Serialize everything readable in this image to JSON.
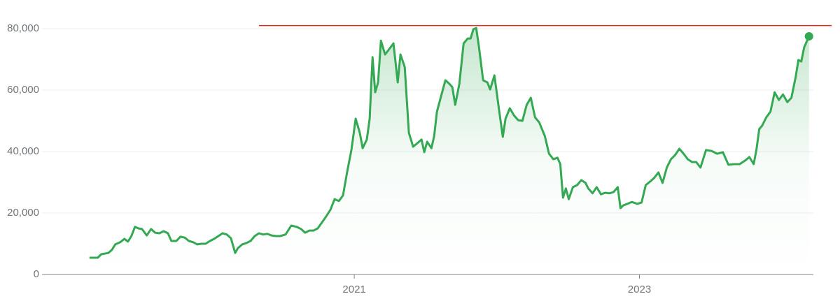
{
  "chart_data": {
    "type": "line",
    "color": "#34a853",
    "grid": true,
    "x": [
      2019.143,
      2019.201,
      2019.226,
      2019.275,
      2019.3,
      2019.324,
      2019.359,
      2019.388,
      2019.413,
      2019.437,
      2019.462,
      2019.486,
      2019.511,
      2019.545,
      2019.575,
      2019.604,
      2019.634,
      2019.663,
      2019.693,
      2019.717,
      2019.752,
      2019.781,
      2019.811,
      2019.84,
      2019.87,
      2019.899,
      2019.929,
      2019.958,
      2019.988,
      2020.017,
      2020.047,
      2020.076,
      2020.106,
      2020.135,
      2020.165,
      2020.184,
      2020.214,
      2020.243,
      2020.273,
      2020.302,
      2020.332,
      2020.361,
      2020.391,
      2020.42,
      2020.45,
      2020.479,
      2020.518,
      2020.558,
      2020.597,
      2020.627,
      2020.656,
      2020.686,
      2020.715,
      2020.744,
      2020.774,
      2020.803,
      2020.833,
      2020.862,
      2020.892,
      2020.921,
      2020.951,
      2020.98,
      2021.01,
      2021.039,
      2021.059,
      2021.088,
      2021.108,
      2021.128,
      2021.147,
      2021.167,
      2021.187,
      2021.216,
      2021.246,
      2021.275,
      2021.305,
      2021.324,
      2021.354,
      2021.383,
      2021.413,
      2021.442,
      2021.472,
      2021.491,
      2021.511,
      2021.541,
      2021.56,
      2021.58,
      2021.609,
      2021.639,
      2021.668,
      2021.688,
      2021.708,
      2021.737,
      2021.767,
      2021.796,
      2021.816,
      2021.835,
      2021.855,
      2021.875,
      2021.904,
      2021.934,
      2021.953,
      2021.983,
      2022.012,
      2022.042,
      2022.061,
      2022.091,
      2022.12,
      2022.15,
      2022.179,
      2022.209,
      2022.238,
      2022.268,
      2022.297,
      2022.337,
      2022.366,
      2022.396,
      2022.425,
      2022.445,
      2022.464,
      2022.484,
      2022.504,
      2022.533,
      2022.563,
      2022.592,
      2022.622,
      2022.641,
      2022.671,
      2022.7,
      2022.73,
      2022.759,
      2022.789,
      2022.818,
      2022.848,
      2022.867,
      2022.887,
      2022.916,
      2022.946,
      2022.985,
      2023.015,
      2023.044,
      2023.074,
      2023.103,
      2023.133,
      2023.162,
      2023.192,
      2023.221,
      2023.251,
      2023.28,
      2023.31,
      2023.339,
      2023.369,
      2023.398,
      2023.428,
      2023.467,
      2023.506,
      2023.545,
      2023.585,
      2023.624,
      2023.663,
      2023.703,
      2023.742,
      2023.771,
      2023.801,
      2023.821,
      2023.84,
      2023.86,
      2023.889,
      2023.919,
      2023.948,
      2023.978,
      2024.007,
      2024.037,
      2024.066,
      2024.096,
      2024.115,
      2024.135,
      2024.155,
      2024.189
    ],
    "values": [
      5450,
      5450,
      6600,
      7000,
      8000,
      9800,
      10500,
      11600,
      10700,
      12500,
      15500,
      15000,
      14800,
      12700,
      14800,
      13600,
      13400,
      14100,
      13400,
      10900,
      10900,
      12300,
      12000,
      10900,
      10500,
      9800,
      10000,
      10000,
      10900,
      11600,
      12500,
      13400,
      13000,
      11800,
      7000,
      8600,
      9800,
      10200,
      10900,
      12500,
      13400,
      13000,
      13200,
      12700,
      12500,
      12500,
      13000,
      15900,
      15500,
      14800,
      13600,
      14300,
      14300,
      15000,
      17000,
      18900,
      21100,
      24500,
      23900,
      25700,
      33600,
      40500,
      50700,
      46100,
      41100,
      43900,
      50700,
      70700,
      59300,
      62500,
      76100,
      71600,
      73400,
      75200,
      62500,
      71600,
      67500,
      46100,
      41600,
      42700,
      43900,
      39800,
      43200,
      41100,
      45000,
      53000,
      58000,
      63200,
      62000,
      60900,
      55200,
      62000,
      75200,
      76800,
      76800,
      79800,
      80200,
      73900,
      63200,
      62500,
      60200,
      64800,
      54800,
      44800,
      50700,
      54100,
      51800,
      50200,
      50000,
      55200,
      57500,
      51100,
      49500,
      45000,
      39300,
      37500,
      38000,
      35900,
      25000,
      28000,
      24500,
      28400,
      29100,
      30700,
      29800,
      28000,
      26400,
      28400,
      26100,
      26600,
      26400,
      26800,
      28400,
      21600,
      22500,
      23000,
      23600,
      23000,
      23400,
      29100,
      30200,
      31400,
      33200,
      29800,
      34800,
      37500,
      38900,
      40900,
      39300,
      37500,
      36600,
      36600,
      34800,
      40500,
      40200,
      39300,
      39800,
      35700,
      35900,
      35900,
      37100,
      38200,
      35900,
      40700,
      47300,
      48400,
      51100,
      53000,
      59300,
      56800,
      58600,
      56100,
      57500,
      64300,
      69800,
      69300,
      73900,
      77500
    ],
    "xlim": [
      2018.81,
      2024.22
    ],
    "xticks": [
      2021,
      2023
    ],
    "ylim": [
      0,
      80000
    ],
    "yticks": [
      0,
      {
        "value": 20000,
        "label": "20,000"
      },
      {
        "value": 40000,
        "label": "40,000"
      },
      {
        "value": 60000,
        "label": "60,000"
      },
      {
        "value": 80000,
        "label": "80,000"
      }
    ],
    "reference_line": {
      "value": 81000,
      "x_start": 2020.332,
      "color": "#d93025"
    }
  }
}
